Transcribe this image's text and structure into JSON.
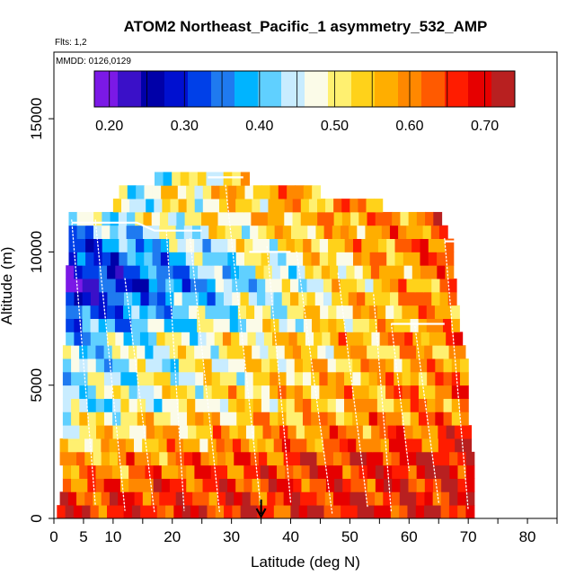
{
  "chart_data": {
    "type": "heatmap",
    "title": "ATOM2 Northeast_Pacific_1 asymmetry_532_AMP",
    "subtitle_flights": "Flts: 1,2",
    "subtitle_dates": "MMDD: 0126,0129",
    "xlabel": "Latitude (deg N)",
    "ylabel": "Altitude (m)",
    "xlim": [
      0,
      85
    ],
    "ylim": [
      0,
      17500
    ],
    "x_ticks": [
      0,
      5,
      10,
      20,
      30,
      40,
      50,
      60,
      70,
      80
    ],
    "x_minor_ticks": [
      15,
      25,
      35,
      45,
      55,
      65,
      75,
      85
    ],
    "y_ticks": [
      0,
      5000,
      10000,
      15000
    ],
    "colorbar": {
      "min": 0.18,
      "max": 0.74,
      "tick_values": [
        0.2,
        0.3,
        0.4,
        0.5,
        0.6,
        0.7
      ],
      "tick_labels": [
        "0.20",
        "0.30",
        "0.40",
        "0.50",
        "0.60",
        "0.70"
      ],
      "colors": [
        "#7b19e6",
        "#3a10c8",
        "#0000a8",
        "#0010d0",
        "#0040e8",
        "#1f7af0",
        "#00b4ff",
        "#60d0ff",
        "#c8ecff",
        "#fbfbe8",
        "#fff070",
        "#ffd21a",
        "#ffae00",
        "#ff8800",
        "#ff5a00",
        "#ff1c00",
        "#e60000",
        "#b82020"
      ]
    },
    "marker": {
      "latitude": 35,
      "label": "down-arrow"
    },
    "profile_rows": [
      {
        "alt_min": 0,
        "alt_max": 500,
        "lat_min": 0.5,
        "lat_max": 71,
        "low": 0.66,
        "high": 0.69
      },
      {
        "alt_min": 500,
        "alt_max": 1000,
        "lat_min": 1,
        "lat_max": 71,
        "low": 0.64,
        "high": 0.68
      },
      {
        "alt_min": 1000,
        "alt_max": 1500,
        "lat_min": 1.5,
        "lat_max": 71,
        "low": 0.62,
        "high": 0.68
      },
      {
        "alt_min": 1500,
        "alt_max": 2000,
        "lat_min": 1.5,
        "lat_max": 71,
        "low": 0.58,
        "high": 0.7
      },
      {
        "alt_min": 2000,
        "alt_max": 2500,
        "lat_min": 1,
        "lat_max": 71,
        "low": 0.56,
        "high": 0.7
      },
      {
        "alt_min": 2500,
        "alt_max": 3000,
        "lat_min": 1,
        "lat_max": 70.5,
        "low": 0.52,
        "high": 0.66
      },
      {
        "alt_min": 3000,
        "alt_max": 3500,
        "lat_min": 1.5,
        "lat_max": 70.5,
        "low": 0.5,
        "high": 0.64
      },
      {
        "alt_min": 3500,
        "alt_max": 4000,
        "lat_min": 1.5,
        "lat_max": 70,
        "low": 0.48,
        "high": 0.62
      },
      {
        "alt_min": 4000,
        "alt_max": 4500,
        "lat_min": 1.5,
        "lat_max": 70,
        "low": 0.42,
        "high": 0.6
      },
      {
        "alt_min": 4500,
        "alt_max": 5000,
        "lat_min": 1.5,
        "lat_max": 70,
        "low": 0.44,
        "high": 0.62
      },
      {
        "alt_min": 5000,
        "alt_max": 5500,
        "lat_min": 1.5,
        "lat_max": 70,
        "low": 0.42,
        "high": 0.6
      },
      {
        "alt_min": 5500,
        "alt_max": 6000,
        "lat_min": 1.5,
        "lat_max": 70,
        "low": 0.4,
        "high": 0.6
      },
      {
        "alt_min": 6000,
        "alt_max": 6500,
        "lat_min": 1.5,
        "lat_max": 69.5,
        "low": 0.42,
        "high": 0.58
      },
      {
        "alt_min": 6500,
        "alt_max": 7000,
        "lat_min": 2,
        "lat_max": 69,
        "low": 0.38,
        "high": 0.62
      },
      {
        "alt_min": 7000,
        "alt_max": 7500,
        "lat_min": 2,
        "lat_max": 68.5,
        "low": 0.34,
        "high": 0.58
      },
      {
        "alt_min": 7500,
        "alt_max": 8000,
        "lat_min": 2,
        "lat_max": 68.5,
        "low": 0.3,
        "high": 0.6
      },
      {
        "alt_min": 8000,
        "alt_max": 8500,
        "lat_min": 2,
        "lat_max": 68,
        "low": 0.26,
        "high": 0.62
      },
      {
        "alt_min": 8500,
        "alt_max": 9000,
        "lat_min": 2,
        "lat_max": 68,
        "low": 0.22,
        "high": 0.6
      },
      {
        "alt_min": 9000,
        "alt_max": 9500,
        "lat_min": 2,
        "lat_max": 67.5,
        "low": 0.24,
        "high": 0.6
      },
      {
        "alt_min": 9500,
        "alt_max": 10000,
        "lat_min": 2.5,
        "lat_max": 67.5,
        "low": 0.28,
        "high": 0.62
      },
      {
        "alt_min": 10000,
        "alt_max": 10500,
        "lat_min": 2.5,
        "lat_max": 67.5,
        "low": 0.3,
        "high": 0.64
      },
      {
        "alt_min": 10500,
        "alt_max": 11000,
        "lat_min": 2.5,
        "lat_max": 66.5,
        "low": 0.36,
        "high": 0.62
      },
      {
        "alt_min": 11000,
        "alt_max": 11500,
        "lat_min": 2.5,
        "lat_max": 65.5,
        "low": 0.42,
        "high": 0.62
      },
      {
        "alt_min": 11500,
        "alt_max": 12000,
        "lat_min": 10,
        "lat_max": 55.5,
        "low": 0.44,
        "high": 0.6
      },
      {
        "alt_min": 12000,
        "alt_max": 12500,
        "lat_min": 11,
        "lat_max": 45,
        "low": 0.46,
        "high": 0.6
      },
      {
        "alt_min": 12500,
        "alt_max": 13000,
        "lat_min": 17,
        "lat_max": 33,
        "low": 0.44,
        "high": 0.54
      }
    ]
  }
}
